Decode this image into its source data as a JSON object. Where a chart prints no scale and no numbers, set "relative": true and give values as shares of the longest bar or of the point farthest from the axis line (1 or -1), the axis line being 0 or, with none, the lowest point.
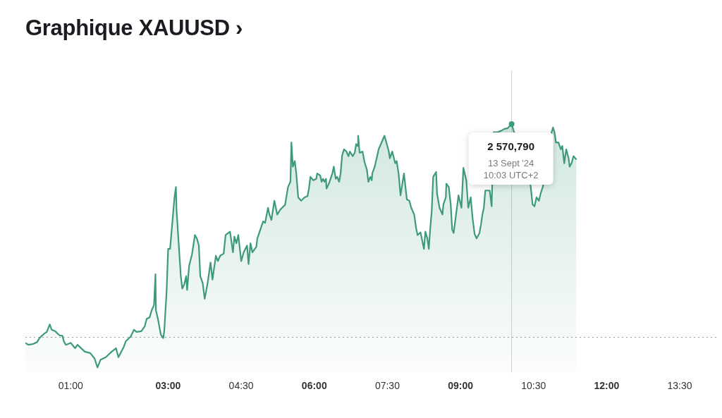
{
  "chart_data": {
    "type": "area",
    "title": "Graphique XAUUSD ›",
    "relative": true,
    "color": "#3e9a7e",
    "marker": "none",
    "legend": false,
    "x": [
      0.07,
      0.13,
      0.22,
      0.31,
      0.36,
      0.45,
      0.51,
      0.57,
      0.61,
      0.68,
      0.77,
      0.83,
      0.86,
      0.9,
      1.0,
      1.09,
      1.14,
      1.29,
      1.4,
      1.49,
      1.55,
      1.61,
      1.72,
      1.84,
      1.93,
      1.98,
      2.09,
      2.13,
      2.23,
      2.3,
      2.35,
      2.45,
      2.52,
      2.56,
      2.62,
      2.66,
      2.71,
      2.74,
      2.75,
      2.79,
      2.85,
      2.9,
      2.92,
      2.97,
      3.0,
      3.04,
      3.1,
      3.13,
      3.16,
      3.17,
      3.21,
      3.26,
      3.29,
      3.33,
      3.37,
      3.39,
      3.43,
      3.49,
      3.55,
      3.59,
      3.63,
      3.66,
      3.71,
      3.75,
      3.81,
      3.87,
      3.91,
      3.95,
      3.98,
      4.02,
      4.07,
      4.14,
      4.18,
      4.27,
      4.33,
      4.36,
      4.4,
      4.44,
      4.5,
      4.55,
      4.62,
      4.65,
      4.69,
      4.73,
      4.81,
      4.83,
      4.91,
      4.95,
      4.99,
      5.05,
      5.08,
      5.12,
      5.18,
      5.24,
      5.3,
      5.34,
      5.4,
      5.46,
      5.51,
      5.53,
      5.56,
      5.6,
      5.63,
      5.67,
      5.73,
      5.8,
      5.86,
      5.89,
      5.92,
      5.98,
      6.04,
      6.06,
      6.12,
      6.15,
      6.18,
      6.21,
      6.24,
      6.25,
      6.3,
      6.37,
      6.4,
      6.44,
      6.47,
      6.51,
      6.54,
      6.57,
      6.61,
      6.66,
      6.7,
      6.73,
      6.79,
      6.83,
      6.86,
      6.89,
      6.9,
      6.93,
      6.99,
      7.03,
      7.08,
      7.11,
      7.15,
      7.18,
      7.19,
      7.24,
      7.29,
      7.32,
      7.38,
      7.44,
      7.48,
      7.53,
      7.55,
      7.6,
      7.66,
      7.69,
      7.73,
      7.77,
      7.84,
      7.9,
      7.95,
      7.99,
      8.05,
      8.09,
      8.12,
      8.18,
      8.25,
      8.28,
      8.32,
      8.35,
      8.38,
      8.41,
      8.44,
      8.5,
      8.52,
      8.57,
      8.63,
      8.65,
      8.7,
      8.71,
      8.76,
      8.8,
      8.83,
      8.86,
      8.9,
      8.96,
      9.02,
      9.06,
      9.12,
      9.16,
      9.21,
      9.25,
      9.29,
      9.33,
      9.39,
      9.42,
      9.45,
      9.48,
      9.51,
      9.54,
      9.6,
      9.64,
      9.67,
      9.68,
      9.75,
      9.83,
      9.9,
      9.97,
      10.05,
      10.14,
      10.33,
      10.41,
      10.44,
      10.48,
      10.52,
      10.56,
      10.61,
      10.65,
      10.69,
      10.74,
      10.78,
      10.84,
      10.87,
      10.9,
      10.93,
      10.96,
      11.01,
      11.06,
      11.09,
      11.13,
      11.17,
      11.22,
      11.24,
      11.28,
      11.32,
      11.38
    ],
    "values": [
      0.101,
      0.093,
      0.096,
      0.104,
      0.121,
      0.138,
      0.146,
      0.177,
      0.155,
      0.149,
      0.132,
      0.13,
      0.107,
      0.093,
      0.101,
      0.079,
      0.093,
      0.065,
      0.059,
      0.037,
      0,
      0.031,
      0.042,
      0.065,
      0.079,
      0.042,
      0.085,
      0.107,
      0.127,
      0.155,
      0.146,
      0.149,
      0.169,
      0.2,
      0.206,
      0.234,
      0.256,
      0.383,
      0.234,
      0.2,
      0.135,
      0.121,
      0.149,
      0.318,
      0.487,
      0.487,
      0.628,
      0.699,
      0.741,
      0.656,
      0.53,
      0.375,
      0.324,
      0.341,
      0.375,
      0.318,
      0.417,
      0.465,
      0.544,
      0.53,
      0.501,
      0.375,
      0.346,
      0.282,
      0.346,
      0.431,
      0.361,
      0.417,
      0.459,
      0.437,
      0.459,
      0.468,
      0.544,
      0.558,
      0.473,
      0.538,
      0.51,
      0.544,
      0.437,
      0.473,
      0.501,
      0.425,
      0.51,
      0.473,
      0.496,
      0.53,
      0.577,
      0.6,
      0.594,
      0.656,
      0.628,
      0.606,
      0.685,
      0.628,
      0.648,
      0.656,
      0.668,
      0.741,
      0.763,
      0.924,
      0.825,
      0.848,
      0.797,
      0.699,
      0.685,
      0.699,
      0.704,
      0.735,
      0.783,
      0.769,
      0.775,
      0.797,
      0.789,
      0.763,
      0.775,
      0.763,
      0.775,
      0.735,
      0.755,
      0.797,
      0.825,
      0.775,
      0.783,
      0.763,
      0.797,
      0.87,
      0.896,
      0.887,
      0.868,
      0.887,
      0.868,
      0.882,
      0.918,
      0.91,
      0.952,
      0.882,
      0.887,
      0.845,
      0.811,
      0.763,
      0.783,
      0.769,
      0.797,
      0.825,
      0.868,
      0.896,
      0.924,
      0.952,
      0.924,
      0.887,
      0.859,
      0.887,
      0.839,
      0.848,
      0.797,
      0.707,
      0.797,
      0.69,
      0.685,
      0.656,
      0.628,
      0.572,
      0.544,
      0.555,
      0.487,
      0.558,
      0.53,
      0.487,
      0.572,
      0.642,
      0.783,
      0.803,
      0.713,
      0.656,
      0.628,
      0.67,
      0.699,
      0.755,
      0.741,
      0.67,
      0.566,
      0.552,
      0.614,
      0.707,
      0.656,
      0.82,
      0.769,
      0.656,
      0.699,
      0.611,
      0.549,
      0.53,
      0.552,
      0.586,
      0.628,
      0.656,
      0.727,
      null,
      0.727,
      0.662,
      null,
      0.966,
      0.966,
      0.972,
      0.98,
      0.983,
      1,
      null,
      null,
      null,
      0.746,
      0.67,
      0.662,
      0.699,
      0.685,
      0.718,
      0.741,
      null,
      null,
      null,
      0.966,
      0.986,
      0.966,
      0.924,
      0.924,
      0.896,
      0.91,
      0.839,
      0.896,
      0.859,
      0.825,
      0.839,
      0.868,
      0.854
    ],
    "xlim": [
      0.07,
      14.31
    ],
    "xticks": [
      {
        "value": 1,
        "label": "01:00"
      },
      {
        "value": 3,
        "label": "03:00"
      },
      {
        "value": 4.5,
        "label": "04:30"
      },
      {
        "value": 6,
        "label": "06:00"
      },
      {
        "value": 7.5,
        "label": "07:30"
      },
      {
        "value": 9,
        "label": "09:00"
      },
      {
        "value": 10.5,
        "label": "10:30"
      },
      {
        "value": 12,
        "label": "12:00"
      },
      {
        "value": 13.5,
        "label": "13:30"
      }
    ],
    "ref_lines": [
      {
        "axis": "y",
        "value": 0.124,
        "color": "#9a9a9a",
        "line_style": "dotted"
      },
      {
        "axis": "x",
        "value": 10.05,
        "color": "#d0d0d0",
        "line_style": "solid"
      }
    ],
    "annotations": [
      {
        "text": "2 570,790\n13 Sept '24\n10:03 UTC+2",
        "x": 10.05,
        "y": 1
      }
    ]
  }
}
